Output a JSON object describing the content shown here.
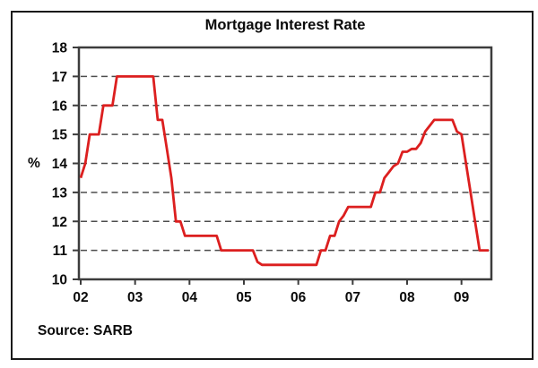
{
  "chart_data": {
    "type": "line",
    "title": "Mortgage Interest Rate",
    "ylabel": "%",
    "source_note": "Source: SARB",
    "x_tick_labels": [
      "02",
      "03",
      "04",
      "05",
      "06",
      "07",
      "08",
      "09"
    ],
    "y_tick_labels": [
      "10",
      "11",
      "12",
      "13",
      "14",
      "15",
      "16",
      "17",
      "18"
    ],
    "ylim": [
      10,
      18
    ],
    "x_unit": "monthly, Jan 2002 - Jul 2009 (axis labeled by year 02-09)",
    "grid": {
      "horizontal_dashed_at": [
        11,
        12,
        13,
        14,
        15,
        16,
        17
      ]
    },
    "legend_position": "none",
    "series": [
      {
        "name": "Mortgage Interest Rate (%)",
        "color": "#dc1f1f",
        "values": [
          13.5,
          14,
          15,
          15,
          15,
          16,
          16,
          16,
          17,
          17,
          17,
          17,
          17,
          17,
          17,
          17,
          17,
          15.5,
          15.5,
          14.5,
          13.5,
          12,
          12,
          11.5,
          11.5,
          11.5,
          11.5,
          11.5,
          11.5,
          11.5,
          11.5,
          11,
          11,
          11,
          11,
          11,
          11,
          11,
          11,
          10.6,
          10.5,
          10.5,
          10.5,
          10.5,
          10.5,
          10.5,
          10.5,
          10.5,
          10.5,
          10.5,
          10.5,
          10.5,
          10.5,
          11,
          11,
          11.5,
          11.5,
          12,
          12.2,
          12.5,
          12.5,
          12.5,
          12.5,
          12.5,
          12.5,
          13,
          13,
          13.5,
          13.7,
          13.9,
          14,
          14.4,
          14.4,
          14.5,
          14.5,
          14.7,
          15.1,
          15.3,
          15.5,
          15.5,
          15.5,
          15.5,
          15.5,
          15.1,
          15,
          14,
          13,
          12,
          11,
          11,
          11
        ]
      }
    ]
  },
  "colors": {
    "line_red": "#dc1f1f",
    "grid_gray": "#4d4d4d",
    "axis_dark": "#3c3c3c",
    "border_black": "#1a1a1a",
    "text_black": "#0a0a0a",
    "background": "#ffffff"
  }
}
